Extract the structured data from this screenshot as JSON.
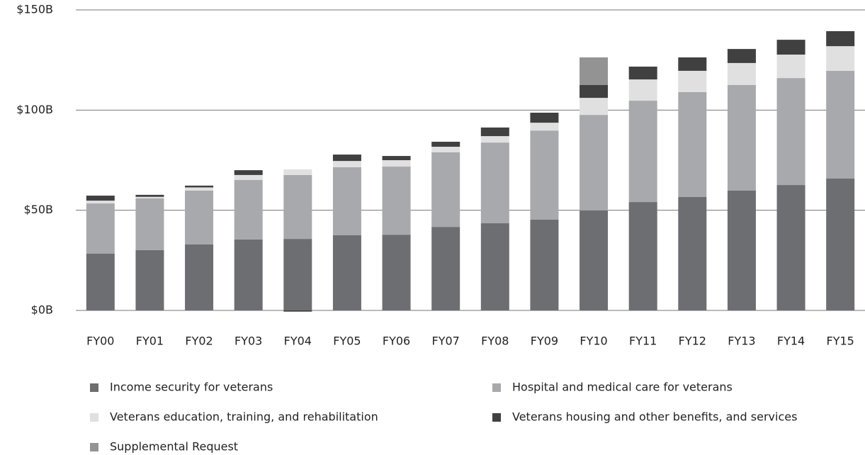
{
  "chart_data": {
    "type": "bar",
    "stacked": true,
    "categories": [
      "FY00",
      "FY01",
      "FY02",
      "FY03",
      "FY04",
      "FY05",
      "FY06",
      "FY07",
      "FY08",
      "FY09",
      "FY10",
      "FY11",
      "FY12",
      "FY13",
      "FY14",
      "FY15"
    ],
    "series": [
      {
        "name": "Income security for veterans",
        "color": "#6d6e71",
        "values": [
          28.3,
          30.1,
          32.9,
          35.4,
          35.7,
          37.5,
          37.8,
          41.7,
          43.5,
          45.3,
          49.9,
          54.1,
          56.6,
          59.8,
          62.6,
          65.8
        ]
      },
      {
        "name": "Hospital and medical care for veterans",
        "color": "#a7a9ac",
        "values": [
          25.1,
          25.8,
          26.9,
          29.7,
          31.9,
          34.0,
          34.0,
          37.2,
          40.3,
          44.5,
          47.7,
          50.6,
          52.4,
          52.7,
          53.4,
          53.8
        ]
      },
      {
        "name": "Veterans education, training, and rehabilitation",
        "color": "#e0e0e0",
        "values": [
          1.4,
          0.8,
          1.6,
          2.5,
          2.8,
          3.1,
          3.2,
          2.8,
          3.2,
          3.9,
          8.5,
          10.6,
          10.6,
          11.0,
          11.7,
          12.3
        ]
      },
      {
        "name": "Veterans housing and other benefits, and services",
        "color": "#404040",
        "values": [
          2.5,
          1.0,
          0.9,
          2.4,
          -0.6,
          3.2,
          2.1,
          2.5,
          4.3,
          5.0,
          6.4,
          6.4,
          6.7,
          7.0,
          7.4,
          7.5
        ]
      },
      {
        "name": "Supplemental Request",
        "color": "#939393",
        "values": [
          null,
          null,
          null,
          null,
          null,
          null,
          null,
          null,
          null,
          null,
          13.8,
          null,
          null,
          null,
          null,
          null
        ]
      }
    ],
    "ylim": [
      0,
      150
    ],
    "yticks": [
      {
        "value": 0,
        "label": "$0B"
      },
      {
        "value": 50,
        "label": "$50B"
      },
      {
        "value": 100,
        "label": "$100B"
      },
      {
        "value": 150,
        "label": "$150B"
      }
    ],
    "grid": true,
    "legend": "bottom"
  }
}
